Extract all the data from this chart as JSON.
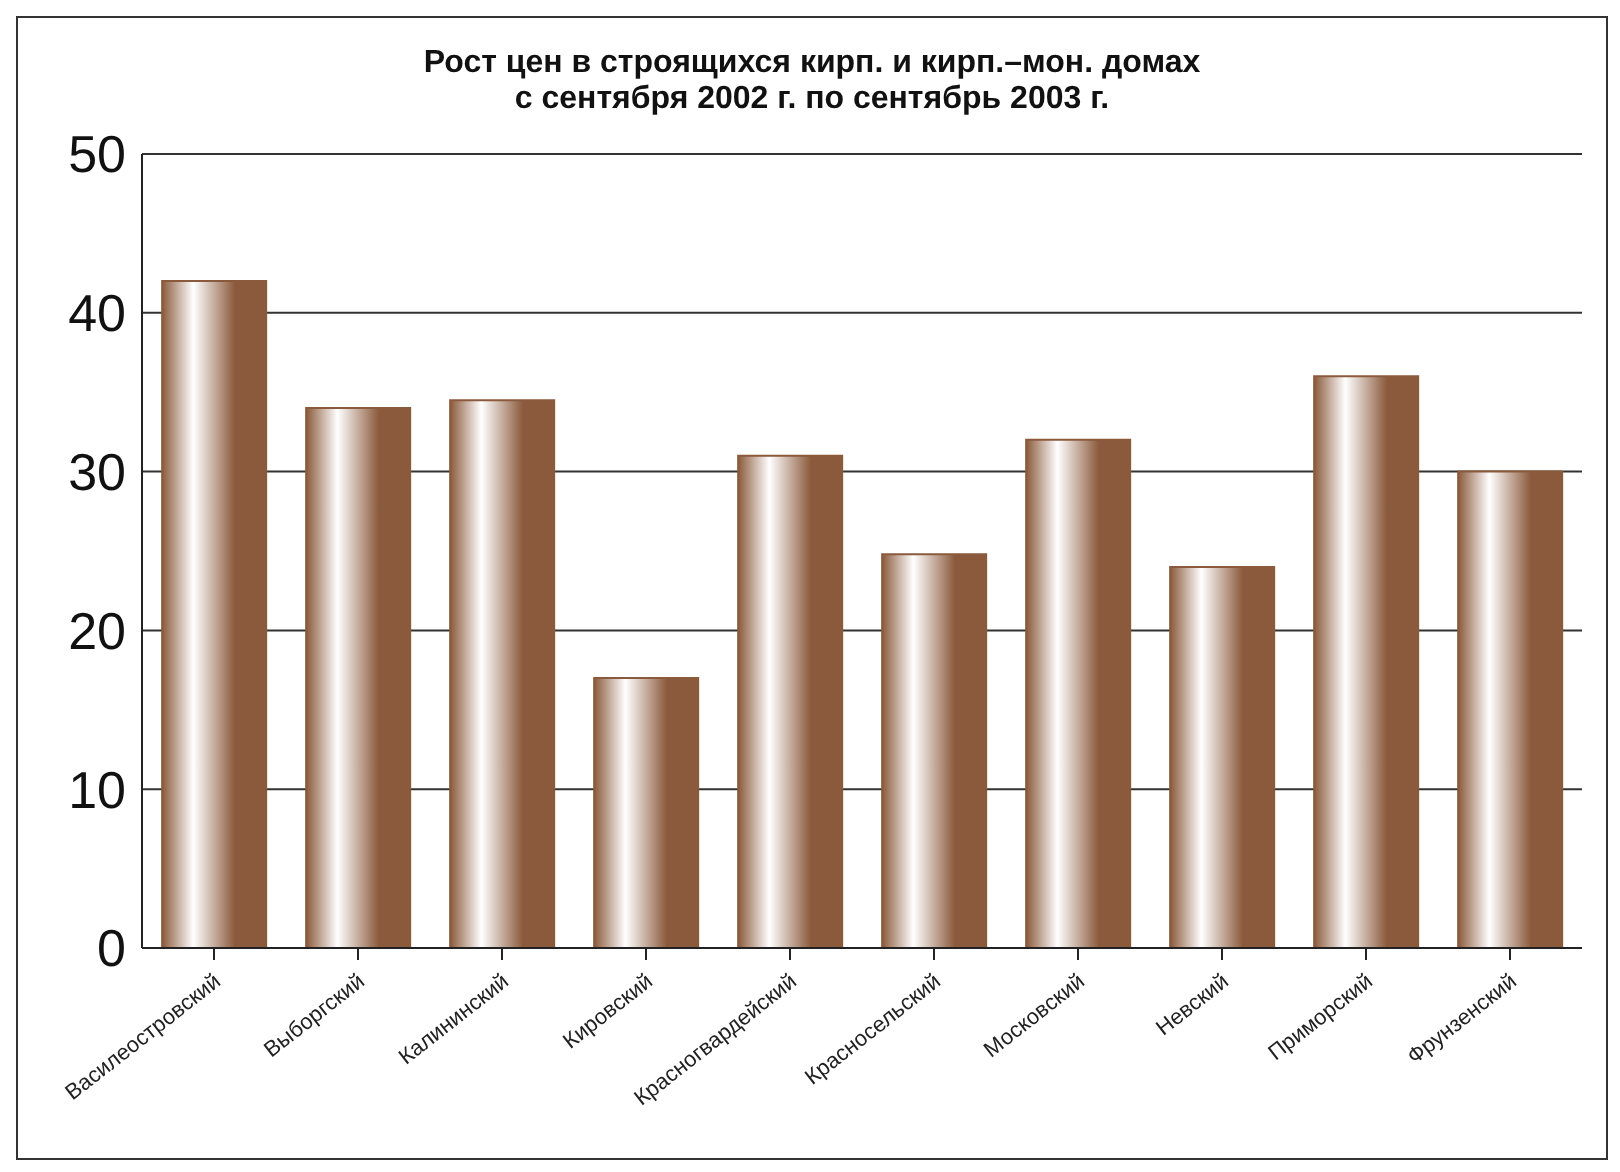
{
  "chart_data": {
    "type": "bar",
    "title": "Рост цен в строящихся кирп. и кирп.–мон. домах\nс сентября 2002 г. по сентябрь 2003 г.",
    "categories": [
      "Василеостровский",
      "Выборгский",
      "Калининский",
      "Кировский",
      "Красногвардейский",
      "Красносельский",
      "Московский",
      "Невский",
      "Приморский",
      "Фрунзенский"
    ],
    "values": [
      42,
      34,
      34.5,
      17,
      31,
      24.8,
      32,
      24,
      36,
      30
    ],
    "color": "#8b5a3c",
    "ylim": [
      0,
      50
    ],
    "yticks": [
      0,
      10,
      20,
      30,
      40,
      50
    ],
    "grid": "y"
  }
}
